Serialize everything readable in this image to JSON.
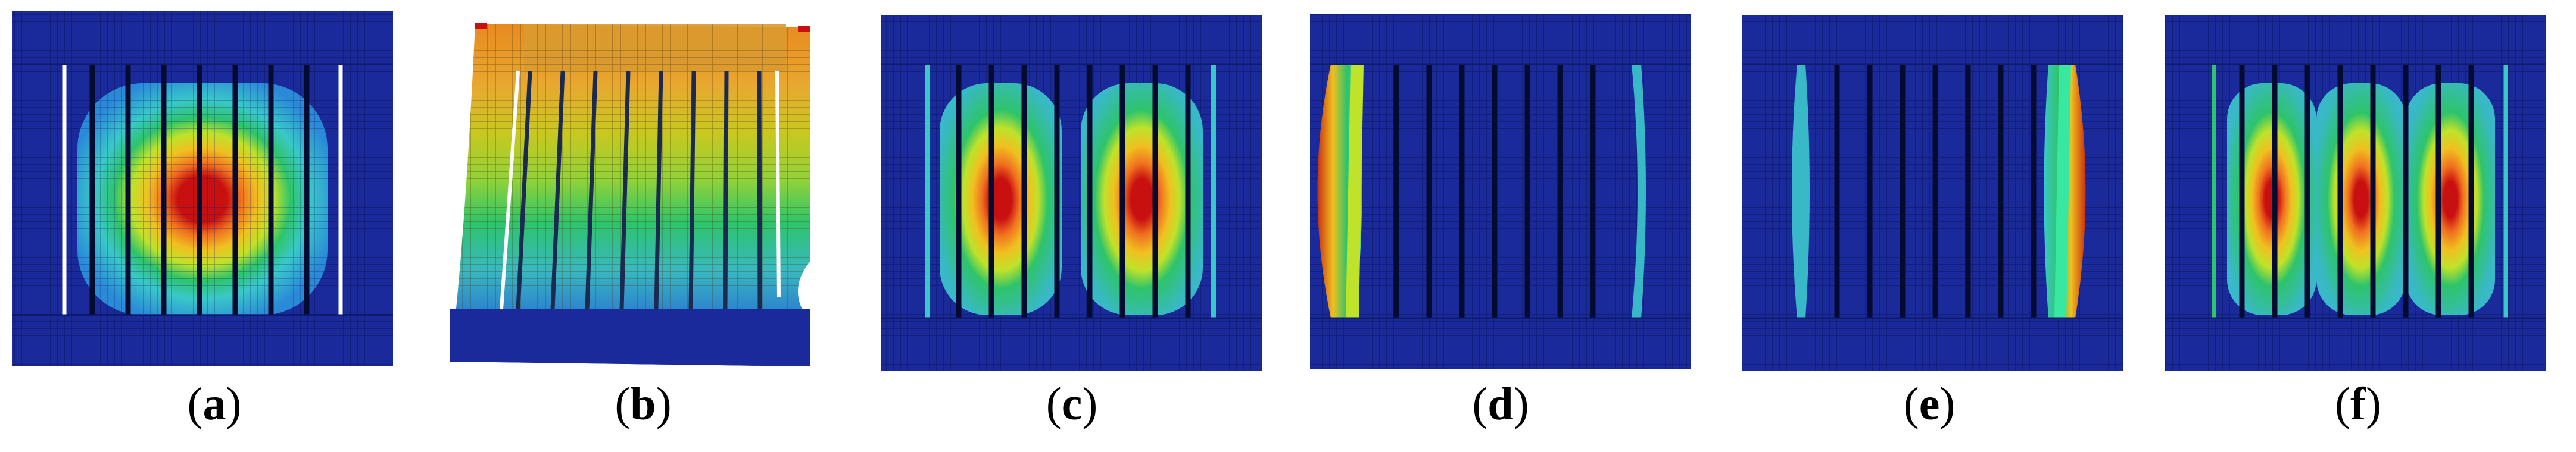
{
  "panels": [
    {
      "id": "a",
      "label_open": "(",
      "letter": "a",
      "label_close": ")"
    },
    {
      "id": "b",
      "label_open": "(",
      "letter": "b",
      "label_close": ")"
    },
    {
      "id": "c",
      "label_open": "(",
      "letter": "c",
      "label_close": ")"
    },
    {
      "id": "d",
      "label_open": "(",
      "letter": "d",
      "label_close": ")"
    },
    {
      "id": "e",
      "label_open": "(",
      "letter": "e",
      "label_close": ")"
    },
    {
      "id": "f",
      "label_open": "(",
      "letter": "f",
      "label_close": ")"
    }
  ],
  "colors": {
    "background": "#ffffff",
    "mesh_base": "#1a2a9a",
    "contour_scale": [
      "#1a2a9a",
      "#2a6ad0",
      "#39c8c8",
      "#2ec46a",
      "#bfe22a",
      "#f0c020",
      "#f07020",
      "#c81010"
    ]
  }
}
